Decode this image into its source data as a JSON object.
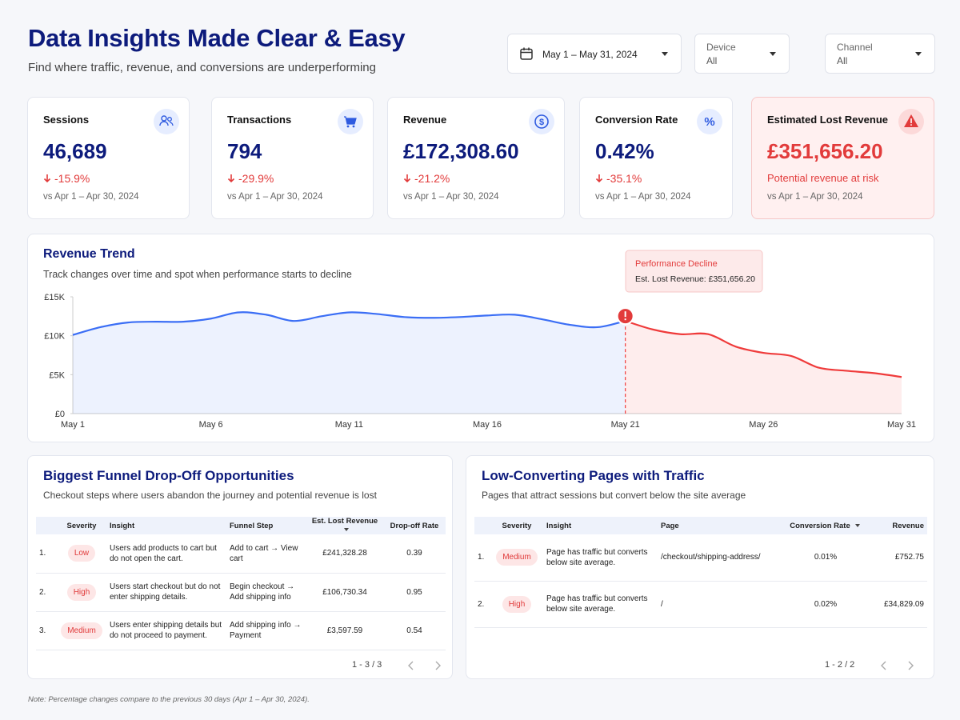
{
  "header": {
    "title": "Data Insights Made Clear & Easy",
    "subtitle": "Find where traffic, revenue, and conversions are underperforming"
  },
  "filters": {
    "date": "May 1 – May 31, 2024",
    "device": {
      "label": "Device",
      "value": "All"
    },
    "channel": {
      "label": "Channel",
      "value": "All"
    }
  },
  "kpis": [
    {
      "label": "Sessions",
      "value": "46,689",
      "change": "-15.9%",
      "comparison": "vs Apr 1 – Apr 30, 2024"
    },
    {
      "label": "Transactions",
      "value": "794",
      "change": "-29.9%",
      "comparison": "vs Apr 1 – Apr 30, 2024"
    },
    {
      "label": "Revenue",
      "value": "£172,308.60",
      "change": "-21.2%",
      "comparison": "vs Apr 1 – Apr 30, 2024"
    },
    {
      "label": "Conversion Rate",
      "value": "0.42%",
      "change": "-35.1%",
      "comparison": "vs Apr 1 – Apr 30, 2024"
    },
    {
      "label": "Estimated Lost Revenue",
      "value": "£351,656.20",
      "note": "Potential revenue at risk",
      "comparison": "vs Apr 1 – Apr 30, 2024"
    }
  ],
  "chart_data": {
    "type": "line",
    "title": "Revenue Trend",
    "subtitle": "Track changes over time and spot when performance starts to decline",
    "categories": [
      "May 1",
      null,
      null,
      null,
      null,
      "May 6",
      null,
      null,
      null,
      null,
      "May 11",
      null,
      null,
      null,
      null,
      "May 16",
      null,
      null,
      null,
      null,
      "May 21",
      null,
      null,
      null,
      null,
      "May 26",
      null,
      null,
      null,
      null,
      "May 31"
    ],
    "series": [
      {
        "color": "#3b6ef5",
        "values": [
          10100,
          11100,
          11700,
          11800,
          11800,
          12200,
          13000,
          12700,
          11900,
          12500,
          13000,
          12800,
          12400,
          12300,
          12400,
          12600,
          12700,
          12100,
          11400,
          11100,
          11900,
          null,
          null,
          null,
          null,
          null,
          null,
          null,
          null,
          null,
          null
        ]
      },
      {
        "color": "#ef3b3b",
        "values": [
          null,
          null,
          null,
          null,
          null,
          null,
          null,
          null,
          null,
          null,
          null,
          null,
          null,
          null,
          null,
          null,
          null,
          null,
          null,
          null,
          11900,
          10800,
          10200,
          10200,
          8600,
          7800,
          7400,
          5900,
          5500,
          5200,
          4700
        ]
      }
    ],
    "ylim": [
      0,
      15000
    ],
    "yticks": [
      {
        "value": 0,
        "label": "£0"
      },
      {
        "value": 5000,
        "label": "£5K"
      },
      {
        "value": 10000,
        "label": "£10K"
      },
      {
        "value": 15000,
        "label": "£15K"
      }
    ],
    "annotation": {
      "title": "Performance Decline",
      "text": "Est. Lost Revenue: £351,656.20"
    }
  },
  "funnel": {
    "title": "Biggest Funnel Drop-Off Opportunities",
    "subtitle": "Checkout steps where users abandon the journey and potential revenue is lost",
    "columns": [
      "Severity",
      "Insight",
      "Funnel Step",
      "Est. Lost Revenue",
      "Drop-off Rate"
    ],
    "rows": [
      [
        "1.",
        "Low",
        "Users add products to cart but do not open the cart.",
        "Add to cart → View cart",
        "£241,328.28",
        "0.39"
      ],
      [
        "2.",
        "High",
        "Users start checkout but do not enter shipping details.",
        "Begin checkout → Add shipping info",
        "£106,730.34",
        "0.95"
      ],
      [
        "3.",
        "Medium",
        "Users enter shipping details but do not proceed to payment.",
        "Add shipping info → Payment",
        "£3,597.59",
        "0.54"
      ]
    ],
    "pagination": "1 - 3 / 3"
  },
  "pages": {
    "title": "Low-Converting Pages with Traffic",
    "subtitle": "Pages that attract sessions but convert below the site average",
    "columns": [
      "Severity",
      "Insight",
      "Page",
      "Conversion Rate",
      "Revenue"
    ],
    "rows": [
      [
        "1.",
        "Medium",
        "Page has traffic but converts below site average.",
        "/checkout/shipping-address/",
        "0.01%",
        "£752.75"
      ],
      [
        "2.",
        "High",
        "Page has traffic but converts below site average.",
        "/",
        "0.02%",
        "£34,829.09"
      ]
    ],
    "pagination": "1 - 2 / 2"
  },
  "footnote": "Note: Percentage changes compare to the previous 30 days (Apr 1 – Apr 30, 2024)."
}
